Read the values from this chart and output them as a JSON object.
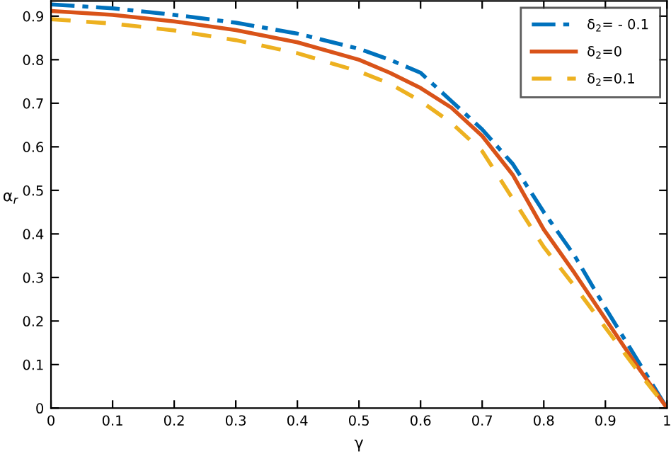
{
  "chart_data": {
    "type": "line",
    "xlabel": "γ",
    "ylabel": "α$_{r}$",
    "x": [
      0,
      0.1,
      0.2,
      0.3,
      0.4,
      0.5,
      0.55,
      0.6,
      0.65,
      0.7,
      0.75,
      0.8,
      0.85,
      0.9,
      0.95,
      1
    ],
    "xlim": [
      0,
      1
    ],
    "ylim": [
      0,
      0.935
    ],
    "xticks": [
      0,
      0.1,
      0.2,
      0.3,
      0.4,
      0.5,
      0.6,
      0.7,
      0.8,
      0.9,
      1
    ],
    "yticks": [
      0,
      0.1,
      0.2,
      0.3,
      0.4,
      0.5,
      0.6,
      0.7,
      0.8,
      0.9
    ],
    "grid": false,
    "legend": "top right",
    "marker": "none",
    "series": [
      {
        "name": "δ$_{2}$= - 0.1",
        "color": "#0072bd",
        "line_style": "dashdot",
        "values": [
          0.927,
          0.918,
          0.903,
          0.885,
          0.86,
          0.825,
          0.8,
          0.77,
          0.705,
          0.64,
          0.56,
          0.45,
          0.35,
          0.23,
          0.115,
          0
        ]
      },
      {
        "name": "δ$_{2}$=0",
        "color": "#d95319",
        "line_style": "solid",
        "values": [
          0.912,
          0.903,
          0.888,
          0.868,
          0.84,
          0.8,
          0.77,
          0.735,
          0.69,
          0.625,
          0.535,
          0.41,
          0.31,
          0.205,
          0.1,
          0
        ]
      },
      {
        "name": "δ$_{2}$=0.1",
        "color": "#edb120",
        "line_style": "dashed",
        "values": [
          0.893,
          0.883,
          0.867,
          0.845,
          0.815,
          0.773,
          0.745,
          0.705,
          0.655,
          0.59,
          0.48,
          0.37,
          0.28,
          0.185,
          0.09,
          0
        ]
      }
    ]
  }
}
